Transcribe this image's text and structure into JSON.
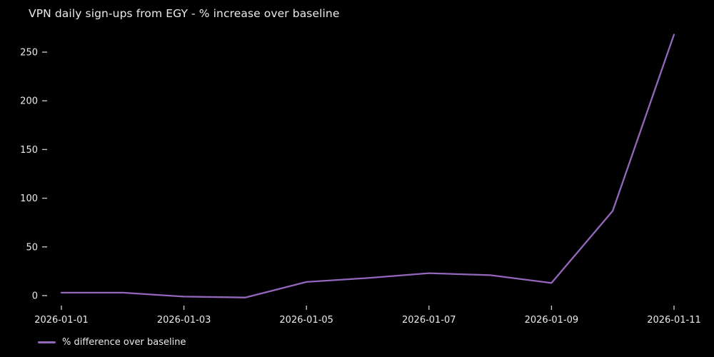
{
  "chart_data": {
    "type": "line",
    "title": "VPN daily sign-ups from EGY - % increase over baseline",
    "x": [
      "2026-01-01",
      "2026-01-02",
      "2026-01-03",
      "2026-01-04",
      "2026-01-05",
      "2026-01-06",
      "2026-01-07",
      "2026-01-08",
      "2026-01-09",
      "2026-01-10",
      "2026-01-11"
    ],
    "series": [
      {
        "name": "% difference over baseline",
        "values": [
          3,
          3,
          -1,
          -2,
          14,
          18,
          23,
          21,
          13,
          87,
          268
        ]
      }
    ],
    "xtick_labels": [
      "2026-01-01",
      "2026-01-03",
      "2026-01-05",
      "2026-01-07",
      "2026-01-09",
      "2026-01-11"
    ],
    "yticks": [
      0,
      50,
      100,
      150,
      200,
      250
    ],
    "ylim": [
      -16,
      282
    ],
    "xlabel": "",
    "ylabel": "",
    "grid": false,
    "legend": {
      "position": "below-axis-left",
      "entries": [
        "% difference over baseline"
      ]
    },
    "colors": {
      "background": "#000000",
      "line": "#9467bd",
      "text": "#eaeaea",
      "tick_mark": "#c2c2c2"
    }
  }
}
